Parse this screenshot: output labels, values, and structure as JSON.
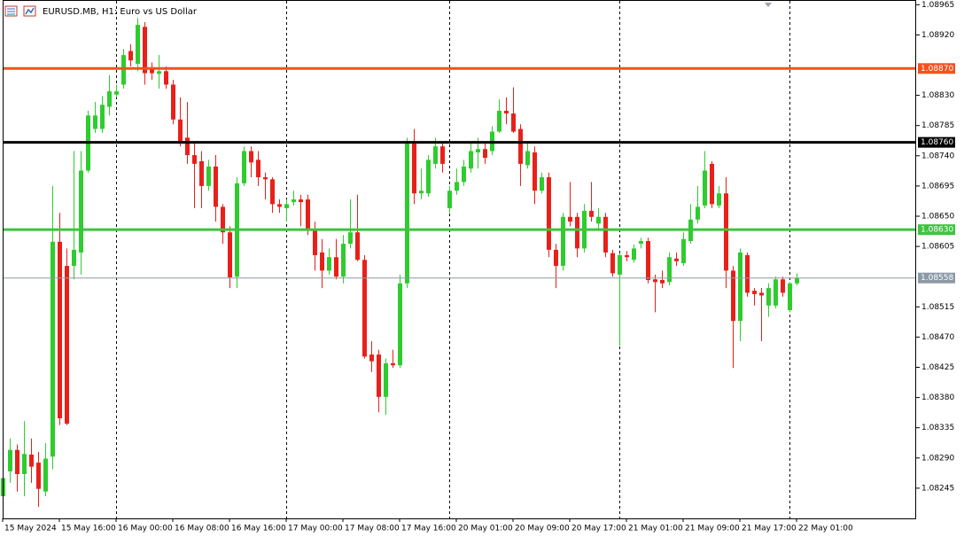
{
  "chart_data": {
    "type": "candlestick",
    "title": "EURUSD.MB, H1:  Euro vs US Dollar",
    "categories": [
      "15 May 2024",
      null,
      null,
      null,
      null,
      null,
      null,
      null,
      "15 May 16:00",
      null,
      null,
      null,
      null,
      null,
      null,
      null,
      "16 May 00:00",
      null,
      null,
      null,
      null,
      null,
      null,
      null,
      "16 May 08:00",
      null,
      null,
      null,
      null,
      null,
      null,
      null,
      "16 May 16:00",
      null,
      null,
      null,
      null,
      null,
      null,
      null,
      "17 May 00:00",
      null,
      null,
      null,
      null,
      null,
      null,
      null,
      "17 May 08:00",
      null,
      null,
      null,
      null,
      null,
      null,
      null,
      "17 May 16:00",
      null,
      null,
      null,
      null,
      null,
      null,
      null,
      "20 May 01:00",
      null,
      null,
      null,
      null,
      null,
      null,
      null,
      "20 May 09:00",
      null,
      null,
      null,
      null,
      null,
      null,
      null,
      "20 May 17:00",
      null,
      null,
      null,
      null,
      null,
      null,
      null,
      "21 May 01:00",
      null,
      null,
      null,
      null,
      null,
      null,
      null,
      "21 May 09:00",
      null,
      null,
      null,
      null,
      null,
      null,
      null,
      "21 May 17:00",
      null,
      null,
      null,
      null,
      null,
      null,
      null,
      "22 May 01:00"
    ],
    "open": [
      1.08233,
      1.0827,
      1.08302,
      1.08266,
      1.08295,
      1.08283,
      1.0824,
      1.08292,
      1.08612,
      1.08576,
      1.08576,
      1.08596,
      1.08718,
      1.0878,
      1.0878,
      1.08813,
      1.08831,
      1.08846,
      1.08896,
      1.08877,
      1.08932,
      1.08869,
      1.08862,
      1.08866,
      1.08846,
      1.08794,
      1.08767,
      1.08741,
      1.08732,
      1.08695,
      1.08724,
      1.08664,
      1.08626,
      1.0856,
      1.08699,
      1.08747,
      1.08734,
      1.08708,
      1.08705,
      1.08668,
      1.08662,
      1.08671,
      1.08675,
      1.08675,
      1.08631,
      1.08596,
      1.08569,
      1.08589,
      1.0856,
      1.08609,
      1.08626,
      1.08585,
      1.08444,
      1.08444,
      1.08381,
      1.08431,
      1.08428,
      1.0855,
      1.08758,
      1.08684,
      1.08684,
      1.08728,
      1.08754,
      1.08662,
      1.08688,
      1.08701,
      1.08721,
      1.08745,
      1.0875,
      1.08747,
      1.08776,
      1.08807,
      1.08803,
      1.0878,
      1.08726,
      1.08745,
      1.08688,
      1.08708,
      1.086,
      1.08576,
      1.08649,
      1.08649,
      1.08602,
      1.08658,
      1.08639,
      1.08649,
      1.08595,
      1.08563,
      1.08592,
      1.08585,
      1.08609,
      1.08613,
      1.08556,
      1.08555,
      1.08552,
      1.08587,
      1.0858,
      1.08613,
      1.08645,
      1.08666,
      1.08728,
      1.08666,
      1.08684,
      1.08569,
      1.08494,
      1.08592,
      1.08539,
      1.08536,
      1.08517,
      1.08517,
      1.08556,
      1.0851,
      1.0855
    ],
    "high": [
      1.08269,
      1.08319,
      1.0831,
      1.08345,
      1.08319,
      1.08299,
      1.08312,
      1.08695,
      1.08655,
      1.08602,
      1.08747,
      1.08747,
      1.08807,
      1.0882,
      1.08829,
      1.0886,
      1.08846,
      1.08899,
      1.08906,
      1.08945,
      1.08939,
      1.08879,
      1.0889,
      1.08873,
      1.08853,
      1.08827,
      1.0882,
      1.08761,
      1.08747,
      1.08734,
      1.08741,
      1.08668,
      1.08635,
      1.08708,
      1.08754,
      1.08754,
      1.08747,
      1.08715,
      1.08708,
      1.08675,
      1.08675,
      1.08688,
      1.08682,
      1.08682,
      1.08642,
      1.08616,
      1.08602,
      1.08616,
      1.08622,
      1.08675,
      1.08682,
      1.08592,
      1.08464,
      1.08451,
      1.08438,
      1.08451,
      1.08563,
      1.08767,
      1.0878,
      1.08721,
      1.08741,
      1.08767,
      1.08761,
      1.08695,
      1.08721,
      1.08734,
      1.08761,
      1.08767,
      1.08761,
      1.08784,
      1.08824,
      1.08827,
      1.08842,
      1.08787,
      1.08761,
      1.08754,
      1.08715,
      1.08715,
      1.08609,
      1.08655,
      1.08701,
      1.08655,
      1.08668,
      1.08701,
      1.08662,
      1.08655,
      1.086,
      1.08595,
      1.08598,
      1.08608,
      1.08618,
      1.08618,
      1.08563,
      1.08569,
      1.08596,
      1.08596,
      1.08626,
      1.08668,
      1.08695,
      1.08747,
      1.08732,
      1.08695,
      1.08708,
      1.08576,
      1.08602,
      1.08596,
      1.08543,
      1.08543,
      1.0855,
      1.0856,
      1.0856,
      1.08552,
      1.08565
    ],
    "low": [
      1.08213,
      1.08253,
      1.0824,
      1.08233,
      1.08253,
      1.08217,
      1.08233,
      1.08273,
      1.08339,
      1.08339,
      1.08556,
      1.08563,
      1.08715,
      1.08774,
      1.08774,
      1.088,
      1.08827,
      1.0884,
      1.08873,
      1.08866,
      1.08846,
      1.08853,
      1.0884,
      1.0884,
      1.08787,
      1.08754,
      1.08728,
      1.08662,
      1.08662,
      1.08688,
      1.08642,
      1.08609,
      1.08543,
      1.08543,
      1.08695,
      1.08708,
      1.08695,
      1.08675,
      1.08655,
      1.08655,
      1.08642,
      1.08666,
      1.08635,
      1.08622,
      1.08569,
      1.08543,
      1.08563,
      1.08556,
      1.0855,
      1.08602,
      1.08583,
      1.08438,
      1.08418,
      1.08358,
      1.08354,
      1.08424,
      1.08424,
      1.08543,
      1.08668,
      1.08675,
      1.08679,
      1.08721,
      1.08715,
      1.08655,
      1.08682,
      1.08695,
      1.08715,
      1.08721,
      1.08728,
      1.08741,
      1.08774,
      1.08787,
      1.08774,
      1.08695,
      1.08721,
      1.08668,
      1.08684,
      1.08589,
      1.08543,
      1.08569,
      1.08635,
      1.08589,
      1.08596,
      1.08642,
      1.08629,
      1.08589,
      1.0856,
      1.08457,
      1.08583,
      1.08581,
      1.08602,
      1.0855,
      1.08507,
      1.08543,
      1.08547,
      1.08576,
      1.08576,
      1.08609,
      1.08639,
      1.08662,
      1.08662,
      1.08662,
      1.08543,
      1.08424,
      1.08464,
      1.0853,
      1.08517,
      1.08464,
      1.085,
      1.08513,
      1.0853,
      1.08507,
      1.08547
    ],
    "close": [
      1.0826,
      1.08302,
      1.08266,
      1.08296,
      1.08277,
      1.08244,
      1.08289,
      1.08612,
      1.08349,
      1.08341,
      1.086,
      1.08718,
      1.088,
      1.088,
      1.08816,
      1.08836,
      1.08836,
      1.0889,
      1.08882,
      1.08935,
      1.08863,
      1.08863,
      1.08866,
      1.08846,
      1.08794,
      1.08761,
      1.08741,
      1.08728,
      1.08695,
      1.08724,
      1.08664,
      1.08626,
      1.08559,
      1.08699,
      1.08747,
      1.0873,
      1.08708,
      1.08705,
      1.08668,
      1.08664,
      1.08668,
      1.08675,
      1.08671,
      1.08631,
      1.08592,
      1.08569,
      1.08589,
      1.0856,
      1.08609,
      1.08626,
      1.08585,
      1.08441,
      1.08434,
      1.08381,
      1.08431,
      1.08428,
      1.0855,
      1.08758,
      1.08684,
      1.08688,
      1.08734,
      1.08754,
      1.08728,
      1.08688,
      1.08701,
      1.08724,
      1.08747,
      1.0875,
      1.08737,
      1.08776,
      1.08807,
      1.08803,
      1.08776,
      1.08728,
      1.08747,
      1.08688,
      1.08708,
      1.086,
      1.08576,
      1.08649,
      1.08642,
      1.08602,
      1.08658,
      1.08649,
      1.08649,
      1.08596,
      1.08565,
      1.08592,
      1.08589,
      1.08602,
      1.08613,
      1.08555,
      1.08552,
      1.0855,
      1.08589,
      1.08583,
      1.08616,
      1.08645,
      1.08664,
      1.08718,
      1.08668,
      1.08684,
      1.08569,
      1.08494,
      1.08596,
      1.08536,
      1.08534,
      1.08532,
      1.08543,
      1.08556,
      1.08536,
      1.0855,
      1.08558
    ],
    "up_color": "#2ecc2e",
    "down_color": "#e8201a",
    "ylim": [
      1.082,
      1.08972
    ],
    "yticks": [
      1.08965,
      {
        "value": 1.0892,
        "label": "1.08920"
      },
      {
        "value": 1.0883,
        "label": "1.08830"
      },
      1.08785,
      {
        "value": 1.0874,
        "label": "1.08740"
      },
      1.08695,
      {
        "value": 1.0865,
        "label": "1.08650"
      },
      1.08605,
      1.08515,
      {
        "value": 1.0847,
        "label": "1.08470"
      },
      1.08425,
      {
        "value": 1.0838,
        "label": "1.08380"
      },
      1.08335,
      {
        "value": 1.0829,
        "label": "1.08290"
      },
      1.08245
    ],
    "levels": [
      {
        "value": 1.0887,
        "label": "1.08870",
        "color": "#f4511e"
      },
      {
        "value": 1.0876,
        "label": "1.08760",
        "color": "#000000"
      },
      {
        "value": 1.0863,
        "label": "1.08630",
        "color": "#3ec43e"
      }
    ],
    "last_price": {
      "value": 1.08558,
      "label": "1.08558",
      "color": "#8c9aa6"
    },
    "separators": [
      16,
      40,
      63,
      87,
      111
    ]
  }
}
